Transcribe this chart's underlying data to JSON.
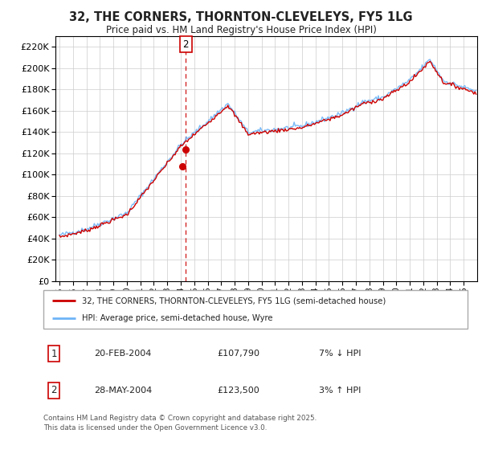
{
  "title": "32, THE CORNERS, THORNTON-CLEVELEYS, FY5 1LG",
  "subtitle": "Price paid vs. HM Land Registry's House Price Index (HPI)",
  "ylim": [
    0,
    230000
  ],
  "ytick_step": 20000,
  "legend_line1": "32, THE CORNERS, THORNTON-CLEVELEYS, FY5 1LG (semi-detached house)",
  "legend_line2": "HPI: Average price, semi-detached house, Wyre",
  "transaction1_date": "20-FEB-2004",
  "transaction1_price": "£107,790",
  "transaction1_hpi": "7% ↓ HPI",
  "transaction1_x": 2004.12,
  "transaction1_y": 107790,
  "transaction2_date": "28-MAY-2004",
  "transaction2_price": "£123,500",
  "transaction2_hpi": "3% ↑ HPI",
  "transaction2_x": 2004.38,
  "transaction2_y": 123500,
  "footer": "Contains HM Land Registry data © Crown copyright and database right 2025.\nThis data is licensed under the Open Government Licence v3.0.",
  "hpi_color": "#6EB4F7",
  "price_color": "#CC0000",
  "dashed_line_color": "#CC0000",
  "background_color": "#ffffff",
  "grid_color": "#cccccc",
  "xmin": 1994.7,
  "xmax": 2026.0
}
